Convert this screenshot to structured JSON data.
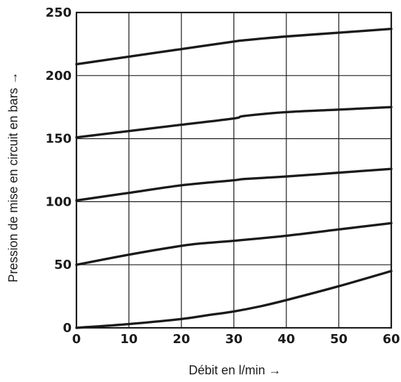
{
  "chart_data": {
    "type": "line",
    "title": "",
    "xlabel": "Débit en l/min →",
    "ylabel": "Pression de mise en circuit en bars →",
    "xlim": [
      0,
      60
    ],
    "ylim": [
      0,
      250
    ],
    "x_ticks": [
      "0",
      "10",
      "20",
      "30",
      "40",
      "50",
      "60"
    ],
    "y_ticks": [
      "0",
      "50",
      "100",
      "150",
      "200",
      "250"
    ],
    "grid": true,
    "legend": "none",
    "line_color": "#1a1a1a",
    "series": [
      {
        "x": [
          0,
          10,
          20,
          30,
          32,
          40,
          50,
          60
        ],
        "values": [
          209,
          215,
          221,
          227,
          228,
          231,
          234,
          237
        ]
      },
      {
        "x": [
          0,
          10,
          20,
          30,
          32,
          40,
          50,
          60
        ],
        "values": [
          151,
          156,
          161,
          166,
          168,
          171,
          173,
          175
        ]
      },
      {
        "x": [
          0,
          10,
          20,
          30,
          32,
          40,
          50,
          60
        ],
        "values": [
          101,
          107,
          113,
          117,
          118,
          120,
          123,
          126
        ]
      },
      {
        "x": [
          0,
          10,
          20,
          24,
          30,
          40,
          50,
          60
        ],
        "values": [
          50,
          58,
          65,
          67,
          69,
          73,
          78,
          83
        ]
      },
      {
        "x": [
          0,
          10,
          20,
          25,
          30,
          35,
          40,
          50,
          60
        ],
        "values": [
          0,
          3,
          7,
          10,
          13,
          17,
          22,
          33,
          45
        ]
      }
    ]
  }
}
